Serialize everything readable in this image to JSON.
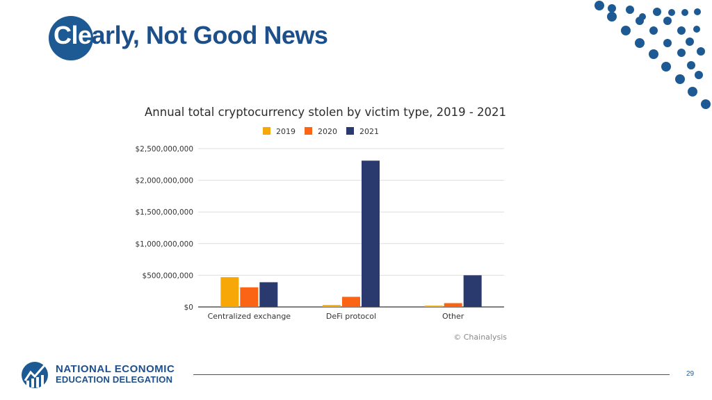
{
  "slide": {
    "title_first": "Cle",
    "title_rest": "arly, Not Good News",
    "page_number": "29",
    "logo_line1": "NATIONAL ECONOMIC",
    "logo_line2": "EDUCATION DELEGATION",
    "accent_color": "#1d5a93"
  },
  "chart_data": {
    "type": "bar",
    "title": "Annual total cryptocurrency stolen by victim type, 2019 - 2021",
    "categories": [
      "Centralized exchange",
      "DeFi protocol",
      "Other"
    ],
    "series": [
      {
        "name": "2019",
        "color": "#f7a707",
        "values": [
          470000000,
          30000000,
          20000000
        ]
      },
      {
        "name": "2020",
        "color": "#fb6414",
        "values": [
          310000000,
          160000000,
          60000000
        ]
      },
      {
        "name": "2021",
        "color": "#2b3a6e",
        "values": [
          390000000,
          2310000000,
          500000000
        ]
      }
    ],
    "yticks": [
      "$0",
      "$500,000,000",
      "$1,000,000,000",
      "$1,500,000,000",
      "$2,000,000,000",
      "$2,500,000,000"
    ],
    "ylim": [
      0,
      2500000000
    ],
    "legend_position": "top-center",
    "grid": true,
    "source": "© Chainalysis"
  }
}
